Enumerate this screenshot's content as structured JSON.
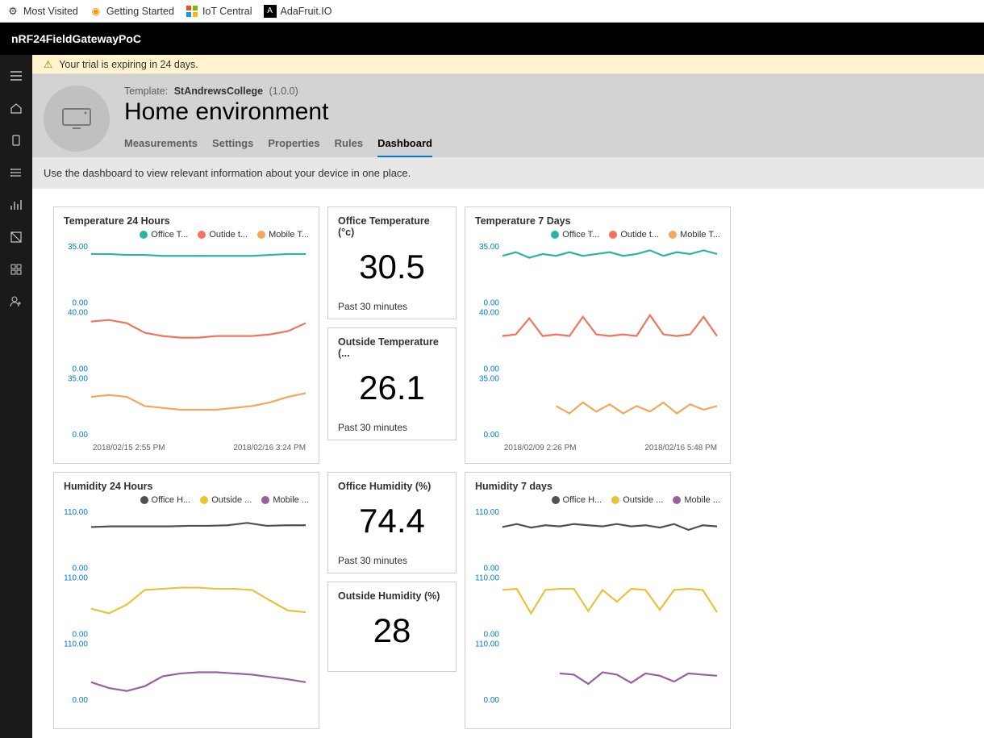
{
  "browser": {
    "bookmarks": [
      {
        "label": "Most Visited",
        "icon": "gear"
      },
      {
        "label": "Getting Started",
        "icon": "firefox"
      },
      {
        "label": "IoT Central",
        "icon": "ms"
      },
      {
        "label": "AdaFruit.IO",
        "icon": "ada"
      }
    ]
  },
  "app": {
    "title": "nRF24FieldGatewayPoC"
  },
  "sidenav": [
    {
      "name": "menu",
      "interactable": true
    },
    {
      "name": "home",
      "interactable": true
    },
    {
      "name": "device-explorer",
      "interactable": true
    },
    {
      "name": "device-sets",
      "interactable": true
    },
    {
      "name": "analytics",
      "interactable": true
    },
    {
      "name": "jobs",
      "interactable": true
    },
    {
      "name": "app-builder",
      "interactable": true
    },
    {
      "name": "admin",
      "interactable": true
    }
  ],
  "trial": {
    "text": "Your trial is expiring in 24 days."
  },
  "device": {
    "template_label": "Template:",
    "template_name": "StAndrewsCollege",
    "template_version": "(1.0.0)",
    "title": "Home environment",
    "tabs": [
      "Measurements",
      "Settings",
      "Properties",
      "Rules",
      "Dashboard"
    ],
    "active_tab": 4
  },
  "info_strip": "Use the dashboard to view relevant information about your device in one place.",
  "colors": {
    "teal": "#2ab5a3",
    "coral": "#f27460",
    "orange": "#f5a65b",
    "slate": "#4f4f55",
    "yellow": "#e8c33a",
    "purple": "#9a5fa0",
    "axis_label": "#0078d4"
  },
  "temp24": {
    "title": "Temperature 24 Hours",
    "legend": [
      {
        "label": "Office T...",
        "color": "#2ab5a3"
      },
      {
        "label": "Outide t...",
        "color": "#f27460"
      },
      {
        "label": "Mobile T...",
        "color": "#f5a65b"
      }
    ],
    "panels": [
      {
        "ymax": "35.00",
        "ymin": "0.00",
        "values": [
          28,
          28,
          27.5,
          27.5,
          27,
          27,
          27,
          27,
          27,
          27,
          27.5,
          28,
          28
        ]
      },
      {
        "ymax": "40.00",
        "ymin": "0.00",
        "values": [
          31,
          32,
          30,
          24,
          22,
          21,
          21,
          22,
          22,
          22,
          23,
          25,
          30
        ]
      },
      {
        "ymax": "35.00",
        "ymin": "0.00",
        "values": [
          22,
          23,
          22,
          17,
          16,
          15,
          15,
          15,
          16,
          17,
          19,
          22,
          24
        ]
      }
    ],
    "x_left": "2018/02/15 2:55 PM",
    "x_right": "2018/02/16 3:24 PM"
  },
  "temp7": {
    "title": "Temperature 7 Days",
    "legend": [
      {
        "label": "Office T...",
        "color": "#2ab5a3"
      },
      {
        "label": "Outide t...",
        "color": "#f27460"
      },
      {
        "label": "Mobile T...",
        "color": "#f5a65b"
      }
    ],
    "panels": [
      {
        "ymax": "35.00",
        "ymin": "0.00",
        "values": [
          27,
          29,
          26,
          28,
          27,
          29,
          27,
          28,
          29,
          27,
          28,
          30,
          27,
          29,
          28,
          30,
          28
        ]
      },
      {
        "ymax": "40.00",
        "ymin": "0.00",
        "values": [
          22,
          23,
          33,
          22,
          23,
          22,
          34,
          23,
          22,
          23,
          22,
          35,
          23,
          22,
          23,
          34,
          22
        ]
      },
      {
        "ymax": "35.00",
        "ymin": "0.00",
        "values": [
          null,
          null,
          null,
          null,
          17,
          13,
          19,
          14,
          18,
          13,
          17,
          14,
          19,
          13,
          18,
          15,
          17
        ]
      }
    ],
    "x_left": "2018/02/09 2:26 PM",
    "x_right": "2018/02/16 5:48 PM"
  },
  "hum24": {
    "title": "Humidity 24 Hours",
    "legend": [
      {
        "label": "Office H...",
        "color": "#4f4f55"
      },
      {
        "label": "Outside ...",
        "color": "#e8c33a"
      },
      {
        "label": "Mobile ...",
        "color": "#9a5fa0"
      }
    ],
    "panels": [
      {
        "ymax": "110.00",
        "ymin": "0.00",
        "values": [
          75,
          76,
          76,
          76,
          76,
          77,
          77,
          78,
          82,
          77,
          78,
          78
        ]
      },
      {
        "ymax": "110.00",
        "ymin": "0.00",
        "values": [
          48,
          40,
          55,
          80,
          82,
          84,
          84,
          82,
          82,
          80,
          62,
          45,
          42
        ]
      },
      {
        "ymax": "110.00",
        "ymin": "0.00",
        "values": [
          35,
          25,
          20,
          28,
          45,
          50,
          52,
          52,
          50,
          48,
          44,
          40,
          35
        ]
      }
    ],
    "x_left": "",
    "x_right": ""
  },
  "hum7": {
    "title": "Humidity 7 days",
    "legend": [
      {
        "label": "Office H...",
        "color": "#4f4f55"
      },
      {
        "label": "Outside ...",
        "color": "#e8c33a"
      },
      {
        "label": "Mobile ...",
        "color": "#9a5fa0"
      }
    ],
    "panels": [
      {
        "ymax": "110.00",
        "ymin": "0.00",
        "values": [
          75,
          80,
          74,
          78,
          76,
          80,
          78,
          76,
          80,
          76,
          78,
          74,
          80,
          70,
          78,
          76
        ]
      },
      {
        "ymax": "110.00",
        "ymin": "0.00",
        "values": [
          80,
          82,
          40,
          80,
          82,
          82,
          44,
          80,
          60,
          82,
          80,
          46,
          80,
          82,
          80,
          42
        ]
      },
      {
        "ymax": "110.00",
        "ymin": "0.00",
        "values": [
          null,
          null,
          null,
          null,
          50,
          48,
          32,
          52,
          48,
          34,
          50,
          46,
          36,
          50,
          48,
          46
        ]
      }
    ],
    "x_left": "",
    "x_right": ""
  },
  "kpi_office_temp": {
    "title": "Office Temperature (°c)",
    "value": "30.5",
    "sub": "Past 30 minutes"
  },
  "kpi_outside_temp": {
    "title": "Outside Temperature (...",
    "value": "26.1",
    "sub": "Past 30 minutes"
  },
  "kpi_office_hum": {
    "title": "Office Humidity (%)",
    "value": "74.4",
    "sub": "Past 30 minutes"
  },
  "kpi_outside_hum": {
    "title": "Outside Humidity (%)",
    "value": "28",
    "sub": ""
  }
}
